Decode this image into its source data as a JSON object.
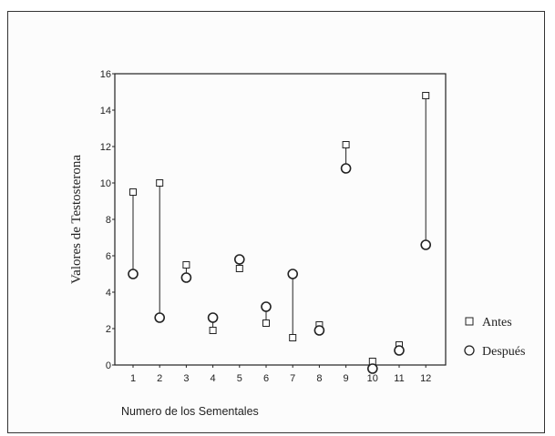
{
  "chart_data": {
    "type": "scatter",
    "xlabel": "Numero de los Sementales",
    "ylabel": "Valores  de Testosterona",
    "categories": [
      "1",
      "2",
      "3",
      "4",
      "5",
      "6",
      "7",
      "8",
      "9",
      "10",
      "11",
      "12"
    ],
    "ylim": [
      0,
      16
    ],
    "yticks": [
      0,
      2,
      4,
      6,
      8,
      10,
      12,
      14,
      16
    ],
    "grid": false,
    "legend_position": "bottom-right",
    "series": [
      {
        "name": "Antes",
        "marker": "square",
        "values": [
          9.5,
          10.0,
          5.5,
          1.9,
          5.3,
          2.3,
          1.5,
          2.2,
          12.1,
          0.2,
          1.1,
          14.8
        ]
      },
      {
        "name": "Después",
        "marker": "circle",
        "values": [
          5.0,
          2.6,
          4.8,
          2.6,
          5.8,
          3.2,
          5.0,
          1.9,
          10.8,
          -0.2,
          0.8,
          6.6
        ]
      }
    ],
    "connectors": "vertical line joining Antes and Después for each semental"
  },
  "colors": {
    "ink": "#222222",
    "frame": "#333333",
    "background": "#fcfcfc"
  }
}
